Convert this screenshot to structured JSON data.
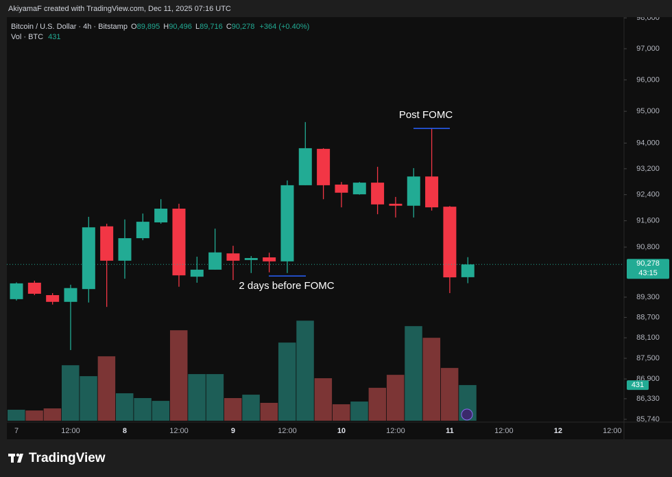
{
  "credit": "AkiyamaF created with TradingView.com, Dec 11, 2025 07:16 UTC",
  "brand": "TradingView",
  "chart_data": {
    "type": "candlestick",
    "legend": {
      "symbol": "Bitcoin / U.S. Dollar · 4h · Bitstamp",
      "o": "O",
      "open": "89,895",
      "h": "H",
      "high": "90,496",
      "l": "L",
      "low": "89,716",
      "c": "C",
      "close": "90,278",
      "change": "+364 (+0.40%)",
      "vol": "Vol · BTC",
      "volume": "431"
    },
    "categories": [
      "7",
      null,
      null,
      "12:00",
      null,
      null,
      "8",
      null,
      null,
      "12:00",
      null,
      null,
      "9",
      null,
      null,
      "12:00",
      null,
      null,
      "10",
      null,
      null,
      "12:00",
      null,
      null,
      "11",
      null,
      null,
      "12:00",
      null,
      null,
      "12",
      null,
      null,
      "12:00"
    ],
    "open": [
      89240,
      89730,
      89360,
      89160,
      89540,
      91430,
      90390,
      91070,
      91550,
      91970,
      89910,
      90120,
      90610,
      90410,
      90490,
      90370,
      92690,
      93820,
      92710,
      92410,
      92770,
      92120,
      92060,
      92960,
      92030,
      89895,
      null,
      null,
      null,
      null,
      null,
      null,
      null,
      null
    ],
    "high": [
      89740,
      89790,
      89420,
      89670,
      91720,
      91510,
      91640,
      91820,
      92260,
      92120,
      90510,
      91360,
      90840,
      90530,
      90630,
      92840,
      94660,
      93840,
      92790,
      92790,
      93260,
      92330,
      93220,
      94460,
      92050,
      90496,
      null,
      null,
      null,
      null,
      null,
      null,
      null,
      null
    ],
    "low": [
      89200,
      89360,
      89080,
      87740,
      89140,
      89010,
      89850,
      91010,
      91510,
      89610,
      89730,
      90120,
      89810,
      90020,
      90040,
      90020,
      92690,
      92260,
      92010,
      92400,
      91800,
      91700,
      91700,
      91910,
      89420,
      89716,
      null,
      null,
      null,
      null,
      null,
      null,
      null,
      null
    ],
    "close": [
      89710,
      89400,
      89160,
      89570,
      91400,
      90390,
      91070,
      91570,
      91970,
      89950,
      90120,
      90640,
      90390,
      90470,
      90370,
      92690,
      93840,
      92690,
      92460,
      92770,
      92100,
      92060,
      92960,
      92010,
      89890,
      90278,
      null,
      null,
      null,
      null,
      null,
      null,
      null,
      null
    ],
    "volume": [
      133,
      124,
      149,
      671,
      539,
      779,
      332,
      274,
      240,
      1094,
      564,
      564,
      274,
      315,
      216,
      945,
      1210,
      514,
      199,
      232,
      398,
      555,
      1144,
      1003,
      638,
      431,
      null,
      null,
      null,
      null,
      null,
      null,
      null,
      null
    ],
    "ylim": [
      85700,
      98025
    ],
    "log_scale": true,
    "grid": false,
    "volume_ylim": [
      0,
      1660
    ],
    "yticks": [
      {
        "value": 98000,
        "label": "98,000"
      },
      {
        "value": 97000,
        "label": "97,000"
      },
      {
        "value": 96000,
        "label": "96,000"
      },
      {
        "value": 95000,
        "label": "95,000"
      },
      {
        "value": 94000,
        "label": "94,000"
      },
      {
        "value": 93200,
        "label": "93,200"
      },
      {
        "value": 92400,
        "label": "92,400"
      },
      {
        "value": 91600,
        "label": "91,600"
      },
      {
        "value": 90800,
        "label": "90,800"
      },
      {
        "value": 89300,
        "label": "89,300"
      },
      {
        "value": 88700,
        "label": "88,700"
      },
      {
        "value": 88100,
        "label": "88,100"
      },
      {
        "value": 87500,
        "label": "87,500"
      },
      {
        "value": 86900,
        "label": "86,900"
      },
      {
        "value": 86330,
        "label": "86,330"
      },
      {
        "value": 85740,
        "label": "85,740"
      }
    ],
    "up_color": "#22ab94",
    "down_color": "#f23645",
    "volume_up_color": "#1d5e57",
    "volume_down_color": "#7c3535",
    "annotations": [
      {
        "text": "Post FOMC",
        "price": 94460
      },
      {
        "text": "2 days before FOMC",
        "price": 89930
      }
    ],
    "last_price_label": "90,278",
    "countdown": "43:15",
    "volume_label": "431"
  }
}
